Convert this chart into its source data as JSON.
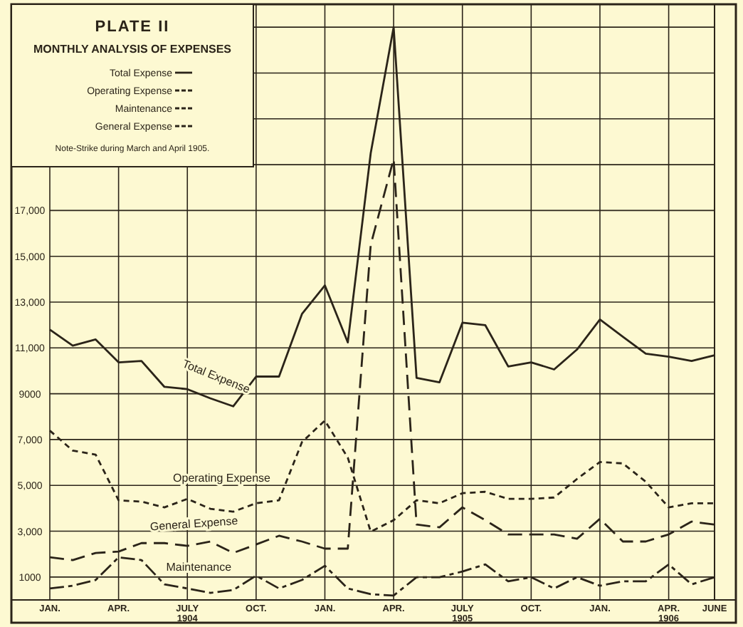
{
  "chart_data": {
    "type": "line",
    "title": "PLATE II",
    "subtitle": "MONTHLY ANALYSIS OF EXPENSES",
    "annotations": [
      "Note-Strike during March and April 1905."
    ],
    "categories": [
      "JAN.",
      null,
      null,
      "APR.",
      null,
      null,
      "JULY\n1904",
      null,
      null,
      "OCT.",
      null,
      null,
      "JAN.",
      null,
      null,
      "APR.",
      null,
      null,
      "JULY\n1905",
      null,
      null,
      "OCT.",
      null,
      null,
      "JAN.",
      null,
      null,
      "APR.\n1906",
      null,
      "JUNE"
    ],
    "ylim": [
      0,
      26000
    ],
    "yticks": [
      {
        "value": 1000,
        "label": "1000"
      },
      {
        "value": 3000,
        "label": "3,000"
      },
      {
        "value": 5000,
        "label": "5,000"
      },
      {
        "value": 7000,
        "label": "7,000"
      },
      {
        "value": 9000,
        "label": "9000"
      },
      {
        "value": 11000,
        "label": "11,000"
      },
      {
        "value": 13000,
        "label": "13,000"
      },
      {
        "value": 15000,
        "label": "15,000"
      },
      {
        "value": 17000,
        "label": "17,000"
      },
      {
        "value": 19000,
        "label": null
      },
      {
        "value": 21000,
        "label": null
      },
      {
        "value": 23000,
        "label": null
      },
      {
        "value": 25000,
        "label": null
      }
    ],
    "grid": true,
    "legend": "top left",
    "marker": "none",
    "series": [
      {
        "name": "Total Expense",
        "color": "#2b2419",
        "line_style": "solid",
        "values": [
          11800,
          11100,
          11370,
          10370,
          10430,
          9300,
          9200,
          8800,
          8450,
          9750,
          9750,
          12480,
          13730,
          11240,
          19500,
          25000,
          9690,
          9500,
          12100,
          11990,
          10190,
          10370,
          10060,
          10930,
          12240,
          11490,
          10750,
          10620,
          10430,
          10680
        ]
      },
      {
        "name": "Operating Expense",
        "color": "#2b2419",
        "line_style": "dotted",
        "values": [
          7390,
          6520,
          6340,
          4350,
          4290,
          4040,
          4410,
          3980,
          3850,
          4220,
          4350,
          6890,
          7830,
          6210,
          2980,
          3480,
          4350,
          4220,
          4660,
          4720,
          4410,
          4410,
          4470,
          5280,
          6020,
          5960,
          5160,
          4040,
          4220,
          4220
        ]
      },
      {
        "name": "Maintenance",
        "color": "#2b2419",
        "line_style": "dashdot",
        "values": [
          500,
          620,
          870,
          1860,
          1740,
          680,
          500,
          310,
          430,
          1060,
          500,
          870,
          1490,
          500,
          250,
          190,
          990,
          990,
          1240,
          1550,
          810,
          990,
          500,
          990,
          620,
          810,
          810,
          1550,
          680,
          990
        ]
      },
      {
        "name": "General Expense",
        "color": "#2b2419",
        "line_style": "dashed",
        "values": [
          1860,
          1740,
          2050,
          2110,
          2480,
          2480,
          2360,
          2550,
          2050,
          2420,
          2800,
          2550,
          2240,
          2240,
          15500,
          19250,
          3290,
          3170,
          4040,
          3480,
          2860,
          2860,
          2860,
          2670,
          3540,
          2550,
          2550,
          2860,
          3420,
          3290
        ]
      }
    ]
  }
}
